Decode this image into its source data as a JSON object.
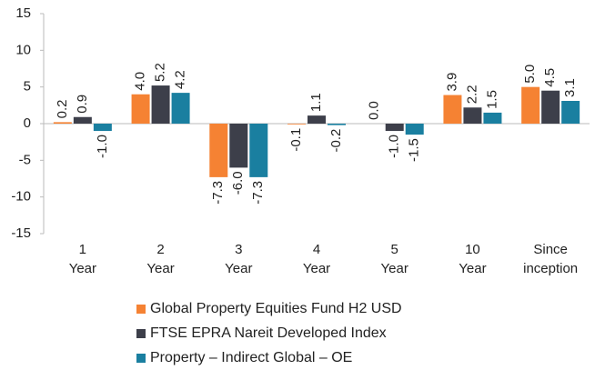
{
  "chart_data": {
    "type": "bar",
    "categories": [
      [
        "1",
        "Year"
      ],
      [
        "2",
        "Year"
      ],
      [
        "3",
        "Year"
      ],
      [
        "4",
        "Year"
      ],
      [
        "5",
        "Year"
      ],
      [
        "10",
        "Year"
      ],
      [
        "Since",
        "inception"
      ]
    ],
    "series": [
      {
        "name": "Global Property Equities Fund H2 USD",
        "color": "#f58233",
        "values": [
          0.2,
          4.0,
          -7.3,
          -0.1,
          0.0,
          3.9,
          5.0
        ],
        "value_labels": [
          "0.2",
          "4.0",
          "-7.3",
          "-0.1",
          "0.0",
          "3.9",
          "5.0"
        ]
      },
      {
        "name": "FTSE EPRA Nareit Developed Index",
        "color": "#3d3f4a",
        "values": [
          0.9,
          5.2,
          -6.0,
          1.1,
          -1.0,
          2.2,
          4.5
        ],
        "value_labels": [
          "0.9",
          "5.2",
          "-6.0",
          "1.1",
          "-1.0",
          "2.2",
          "4.5"
        ]
      },
      {
        "name": "Property – Indirect Global – OE",
        "color": "#1a7fa0",
        "values": [
          -1.0,
          4.2,
          -7.3,
          -0.2,
          -1.5,
          1.5,
          3.1
        ],
        "value_labels": [
          "-1.0",
          "4.2",
          "-7.3",
          "-0.2",
          "-1.5",
          "1.5",
          "3.1"
        ]
      }
    ],
    "ylim": [
      -15,
      15
    ],
    "yticks": [
      -15,
      -10,
      -5,
      0,
      5,
      10,
      15
    ]
  }
}
